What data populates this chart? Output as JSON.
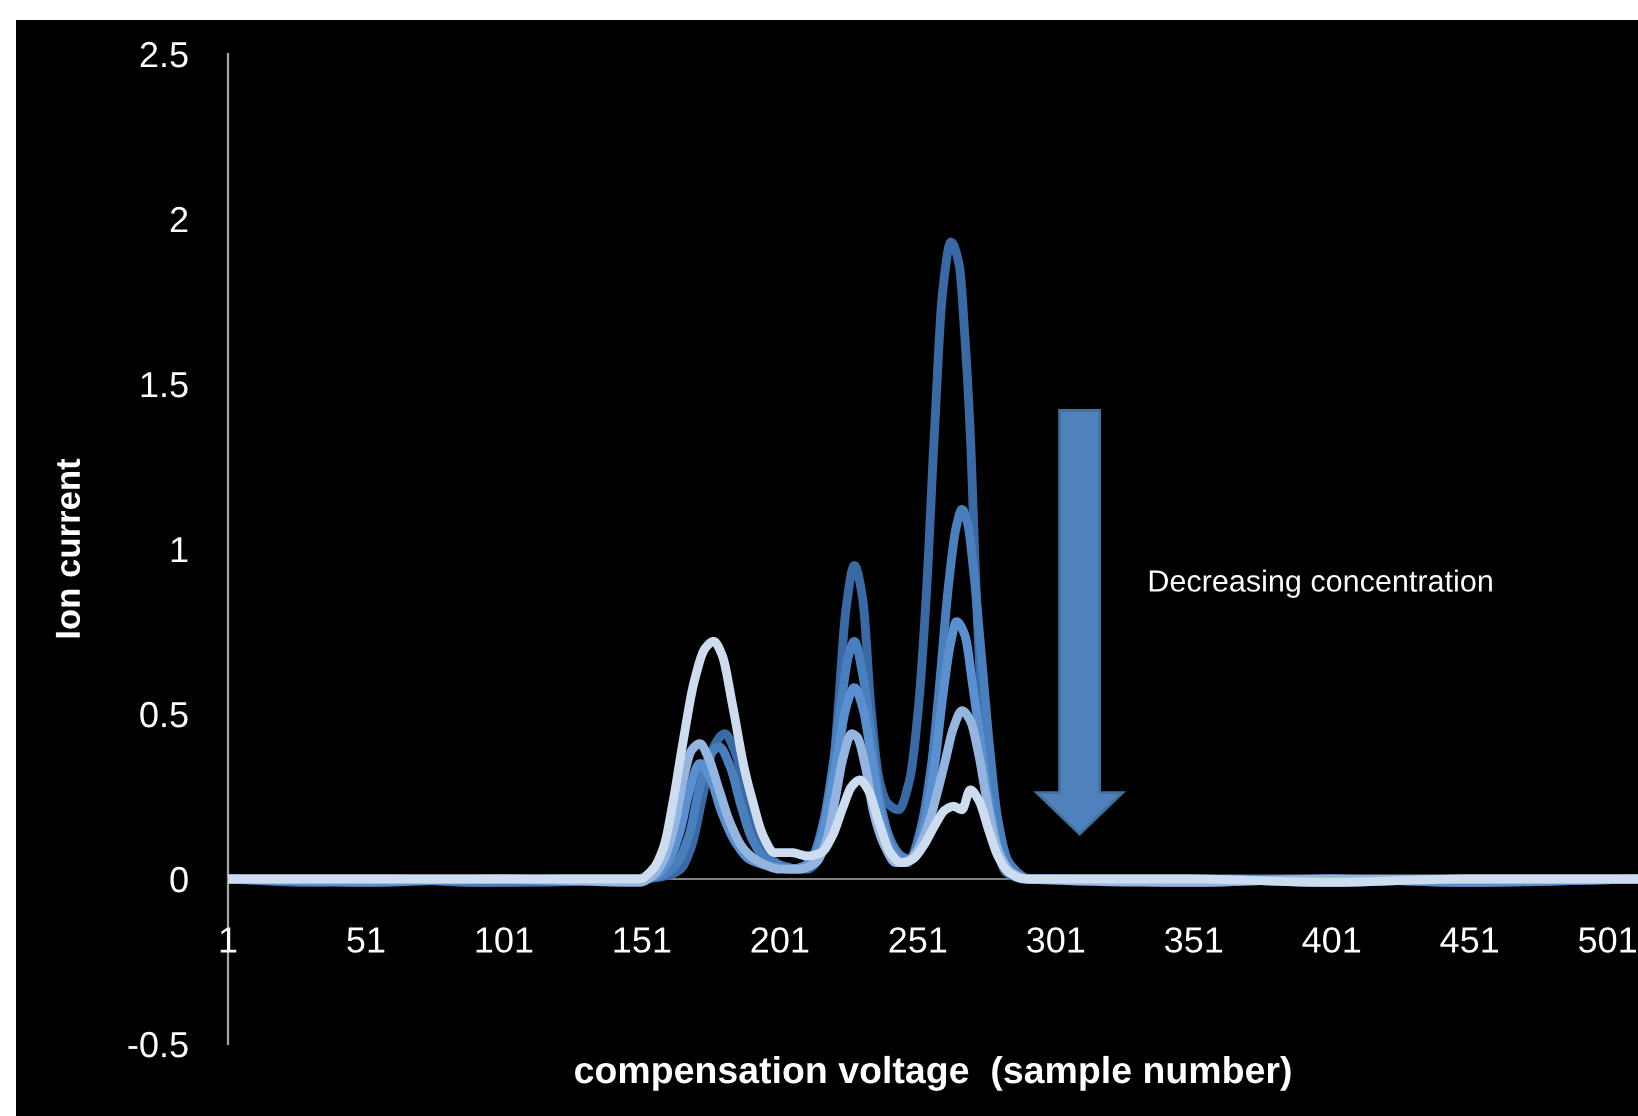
{
  "chart_data": {
    "type": "line",
    "xlabel": "compensation voltage  (sample number)",
    "ylabel": "Ion current",
    "annotations": [
      "Decreasing concentration"
    ],
    "xlim": [
      1,
      512
    ],
    "xticks": [
      1,
      51,
      101,
      151,
      201,
      251,
      301,
      351,
      401,
      451,
      501
    ],
    "ylim": [
      -0.5,
      2.5
    ],
    "yticks": [
      -0.5,
      0,
      0.5,
      1,
      1.5,
      2,
      2.5
    ],
    "marker": "none",
    "line_style": "solid",
    "series": [
      {
        "color": "#3a6aa6",
        "x": [
          1,
          30,
          60,
          90,
          120,
          150,
          160,
          165,
          169,
          173,
          177,
          181,
          185,
          189,
          193,
          198,
          205,
          211,
          215,
          219,
          222,
          225,
          228,
          231,
          234,
          237,
          240,
          244,
          248,
          251,
          254,
          257,
          260,
          263,
          266,
          268,
          270,
          272,
          274,
          276,
          279,
          283,
          290,
          300,
          350,
          400,
          450,
          512
        ],
        "values": [
          0,
          -0.01,
          0,
          -0.01,
          0,
          0,
          0.01,
          0.03,
          0.1,
          0.25,
          0.4,
          0.44,
          0.38,
          0.24,
          0.12,
          0.06,
          0.03,
          0.03,
          0.06,
          0.2,
          0.5,
          0.82,
          0.95,
          0.85,
          0.52,
          0.3,
          0.23,
          0.21,
          0.3,
          0.5,
          0.85,
          1.35,
          1.78,
          1.93,
          1.86,
          1.65,
          1.35,
          0.9,
          0.55,
          0.28,
          0.12,
          0.02,
          0,
          0,
          -0.01,
          0,
          -0.01,
          0
        ]
      },
      {
        "color": "#4a7fbe",
        "x": [
          1,
          50,
          100,
          150,
          158,
          163,
          168,
          172,
          176,
          179,
          183,
          187,
          191,
          196,
          202,
          208,
          213,
          217,
          220,
          223,
          226,
          228,
          231,
          234,
          237,
          241,
          245,
          248,
          252,
          256,
          259,
          262,
          265,
          267,
          269,
          271,
          274,
          277,
          280,
          284,
          292,
          350,
          400,
          450,
          512
        ],
        "values": [
          0,
          0,
          -0.01,
          0,
          0.01,
          0.04,
          0.13,
          0.28,
          0.38,
          0.4,
          0.34,
          0.22,
          0.12,
          0.06,
          0.04,
          0.03,
          0.07,
          0.18,
          0.33,
          0.52,
          0.68,
          0.72,
          0.62,
          0.44,
          0.25,
          0.12,
          0.07,
          0.06,
          0.15,
          0.35,
          0.6,
          0.88,
          1.07,
          1.12,
          1.08,
          0.95,
          0.68,
          0.4,
          0.18,
          0.05,
          0,
          0,
          -0.01,
          0,
          0
        ]
      },
      {
        "color": "#5b90d0",
        "x": [
          1,
          50,
          100,
          150,
          156,
          161,
          165,
          168,
          172,
          176,
          180,
          185,
          190,
          197,
          205,
          212,
          216,
          219,
          222,
          225,
          228,
          231,
          234,
          237,
          241,
          245,
          249,
          253,
          257,
          260,
          263,
          265,
          268,
          271,
          274,
          277,
          281,
          286,
          292,
          350,
          400,
          450,
          512
        ],
        "values": [
          0,
          -0.01,
          0,
          0,
          0.01,
          0.06,
          0.15,
          0.26,
          0.35,
          0.3,
          0.2,
          0.11,
          0.06,
          0.04,
          0.03,
          0.05,
          0.12,
          0.24,
          0.38,
          0.52,
          0.58,
          0.52,
          0.38,
          0.22,
          0.1,
          0.06,
          0.06,
          0.15,
          0.34,
          0.55,
          0.72,
          0.78,
          0.74,
          0.58,
          0.4,
          0.22,
          0.07,
          0.01,
          0,
          0,
          0,
          -0.01,
          0
        ]
      },
      {
        "color": "#93b5df",
        "x": [
          1,
          50,
          100,
          150,
          155,
          159,
          163,
          166,
          169,
          172,
          175,
          179,
          183,
          188,
          194,
          201,
          208,
          214,
          218,
          221,
          224,
          227,
          229,
          232,
          235,
          239,
          243,
          247,
          251,
          255,
          258,
          261,
          264,
          267,
          270,
          273,
          276,
          280,
          285,
          291,
          350,
          400,
          450,
          512
        ],
        "values": [
          0,
          0,
          0,
          -0.01,
          0.01,
          0.06,
          0.17,
          0.3,
          0.39,
          0.41,
          0.37,
          0.27,
          0.17,
          0.09,
          0.05,
          0.03,
          0.03,
          0.05,
          0.12,
          0.24,
          0.37,
          0.44,
          0.43,
          0.34,
          0.2,
          0.1,
          0.05,
          0.05,
          0.09,
          0.17,
          0.26,
          0.36,
          0.46,
          0.51,
          0.48,
          0.38,
          0.24,
          0.09,
          0.02,
          0,
          -0.01,
          0,
          0,
          0
        ]
      },
      {
        "color": "#cddcef",
        "x": [
          1,
          50,
          100,
          150,
          155,
          159,
          162,
          166,
          170,
          174,
          177,
          180,
          184,
          188,
          191,
          195,
          199,
          205,
          211,
          216,
          220,
          224,
          227,
          230,
          233,
          237,
          241,
          245,
          249,
          253,
          257,
          261,
          264,
          267,
          270,
          273,
          277,
          280,
          284,
          290,
          350,
          400,
          450,
          512
        ],
        "values": [
          0,
          0,
          0,
          0,
          0.03,
          0.1,
          0.22,
          0.42,
          0.6,
          0.7,
          0.72,
          0.68,
          0.52,
          0.34,
          0.24,
          0.13,
          0.08,
          0.08,
          0.07,
          0.08,
          0.13,
          0.22,
          0.28,
          0.3,
          0.27,
          0.17,
          0.08,
          0.05,
          0.06,
          0.1,
          0.16,
          0.21,
          0.22,
          0.21,
          0.27,
          0.24,
          0.14,
          0.07,
          0.02,
          0,
          0,
          -0.01,
          0,
          0
        ]
      }
    ]
  }
}
